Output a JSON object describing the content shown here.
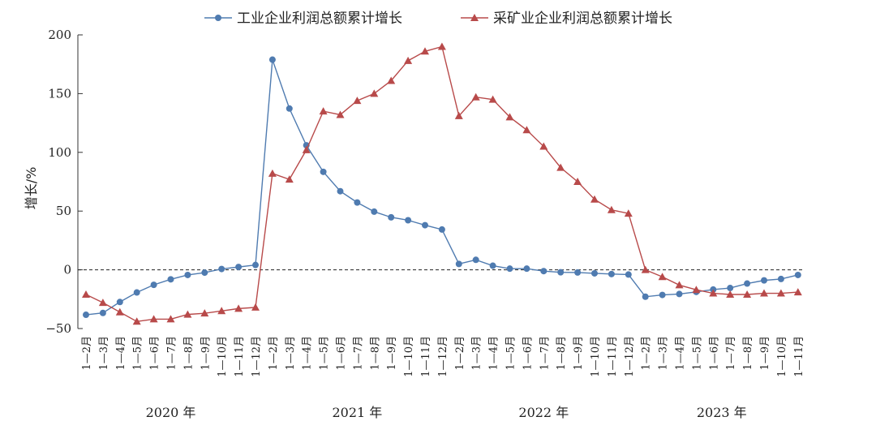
{
  "chart_data": {
    "type": "line",
    "ylabel": "增长/%",
    "ylim": [
      -50,
      200
    ],
    "yticks": [
      "200",
      "150",
      "100",
      "50",
      "0",
      "−50"
    ],
    "ytick_values": [
      200,
      150,
      100,
      50,
      0,
      -50
    ],
    "zero_line": "dashed",
    "legend_position": "top",
    "categories": [
      "1—2月",
      "1—3月",
      "1—4月",
      "1—5月",
      "1—6月",
      "1—7月",
      "1—8月",
      "1—9月",
      "1—10月",
      "1—11月",
      "1—12月",
      "1—2月",
      "1—3月",
      "1—4月",
      "1—5月",
      "1—6月",
      "1—7月",
      "1—8月",
      "1—9月",
      "1—10月",
      "1—11月",
      "1—12月",
      "1—2月",
      "1—3月",
      "1—4月",
      "1—5月",
      "1—6月",
      "1—7月",
      "1—8月",
      "1—9月",
      "1—10月",
      "1—11月",
      "1—12月",
      "1—2月",
      "1—3月",
      "1—4月",
      "1—5月",
      "1—6月",
      "1—7月",
      "1—8月",
      "1—9月",
      "1—10月",
      "1—11月"
    ],
    "year_groups": [
      {
        "label": "2020 年",
        "count": 11
      },
      {
        "label": "2021 年",
        "count": 11
      },
      {
        "label": "2022 年",
        "count": 11
      },
      {
        "label": "2023 年",
        "count": 10
      }
    ],
    "series": [
      {
        "name": "工业企业利润总额累计增长",
        "color": "#4f7bb0",
        "marker": "circle",
        "values": [
          -38.3,
          -36.7,
          -27.4,
          -19.3,
          -12.8,
          -8.1,
          -4.4,
          -2.4,
          0.7,
          2.4,
          4.1,
          178.9,
          137.3,
          106.0,
          83.4,
          66.9,
          57.3,
          49.5,
          44.7,
          42.2,
          38.0,
          34.3,
          5.0,
          8.5,
          3.5,
          1.0,
          1.0,
          -1.1,
          -2.1,
          -2.3,
          -3.0,
          -3.6,
          -4.0,
          -22.9,
          -21.4,
          -20.6,
          -18.8,
          -16.8,
          -15.5,
          -11.7,
          -9.0,
          -7.8,
          -4.4
        ]
      },
      {
        "name": "采矿业企业利润总额累计增长",
        "color": "#b84a4a",
        "marker": "triangle",
        "values": [
          -21.0,
          -28.0,
          -36.0,
          -44.0,
          -42.0,
          -42.0,
          -38.0,
          -37.0,
          -35.0,
          -33.0,
          -32.0,
          82.0,
          77.0,
          102.0,
          135.0,
          132.0,
          144.0,
          150.0,
          161.0,
          178.0,
          186.0,
          190.0,
          131.0,
          147.0,
          145.0,
          130.0,
          119.0,
          105.0,
          87.0,
          75.0,
          60.0,
          51.0,
          48.0,
          0.0,
          -6.0,
          -13.0,
          -17.0,
          -20.0,
          -21.0,
          -21.0,
          -20.0,
          -20.0,
          -19.0
        ]
      }
    ]
  }
}
